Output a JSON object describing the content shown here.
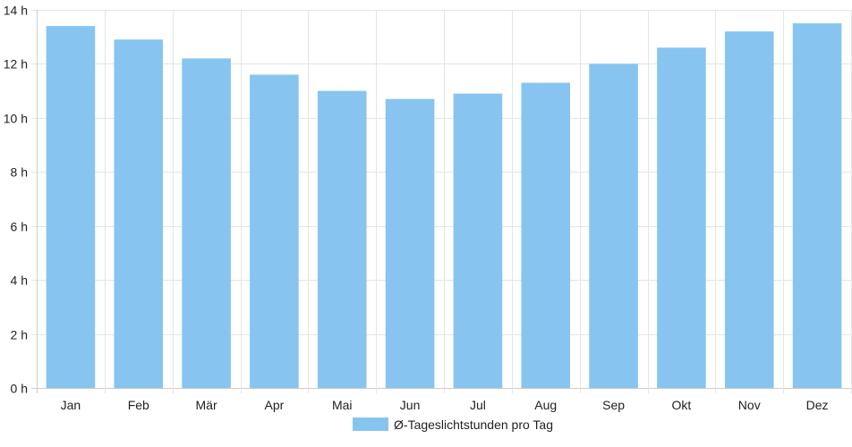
{
  "chart_data": {
    "type": "bar",
    "categories": [
      "Jan",
      "Feb",
      "Mär",
      "Apr",
      "Mai",
      "Jun",
      "Jul",
      "Aug",
      "Sep",
      "Okt",
      "Nov",
      "Dez"
    ],
    "series": [
      {
        "name": "Ø-Tageslichtstunden pro Tag",
        "values": [
          13.4,
          12.9,
          12.2,
          11.6,
          11.0,
          10.7,
          10.9,
          11.3,
          12.0,
          12.6,
          13.2,
          13.5
        ],
        "color": "#87c5f0"
      }
    ],
    "y_ticks": [
      "0 h",
      "2 h",
      "4 h",
      "6 h",
      "8 h",
      "10 h",
      "12 h",
      "14 h"
    ],
    "ylim": [
      0,
      14
    ],
    "grid": true,
    "legend_position": "bottom",
    "title": "",
    "xlabel": "",
    "ylabel": ""
  },
  "colors": {
    "grid": "#e5e5e5",
    "axis": "#cccccc",
    "text": "#222222"
  }
}
